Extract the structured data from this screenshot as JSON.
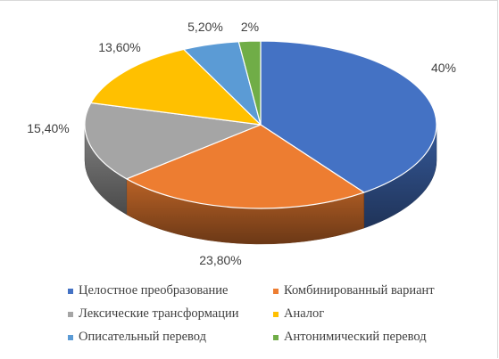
{
  "chart_data": {
    "type": "pie",
    "style": "3d",
    "title": "",
    "series": [
      {
        "categories": [
          "Целостное преобразование",
          "Комбинированный вариант",
          "Лексические трансформации",
          "Аналог",
          "Описательный перевод",
          "Антонимический перевод"
        ],
        "values": [
          40,
          23.8,
          15.4,
          13.6,
          5.2,
          2
        ],
        "data_labels": [
          "40%",
          "23,80%",
          "15,40%",
          "13,60%",
          "5,20%",
          "2%"
        ],
        "colors": [
          "#4472C4",
          "#ED7D31",
          "#A5A5A5",
          "#FFC000",
          "#5B9BD5",
          "#70AD47"
        ]
      }
    ],
    "legend_placement": "bottom",
    "legend_layout": "two columns"
  }
}
